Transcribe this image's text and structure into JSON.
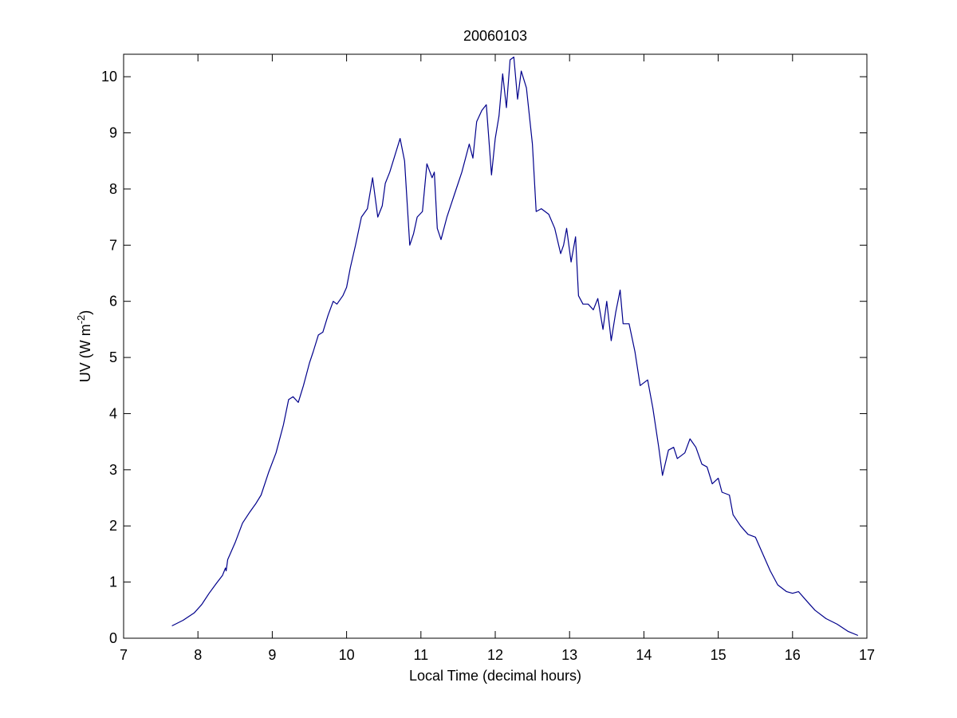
{
  "chart_data": {
    "type": "line",
    "title": "20060103",
    "xlabel": "Local Time (decimal hours)",
    "ylabel": "UV (W m",
    "ylabel_sup": "-2",
    "ylabel_suffix": ")",
    "xlim": [
      7,
      17
    ],
    "ylim": [
      0,
      10.4
    ],
    "xticks": [
      7,
      8,
      9,
      10,
      11,
      12,
      13,
      14,
      15,
      16,
      17
    ],
    "yticks": [
      0,
      1,
      2,
      3,
      4,
      5,
      6,
      7,
      8,
      9,
      10
    ],
    "grid": false,
    "line_color": "#00008b",
    "series": [
      {
        "points": [
          [
            7.65,
            0.22
          ],
          [
            7.8,
            0.32
          ],
          [
            7.95,
            0.45
          ],
          [
            8.05,
            0.6
          ],
          [
            8.15,
            0.8
          ],
          [
            8.25,
            0.98
          ],
          [
            8.33,
            1.12
          ],
          [
            8.37,
            1.25
          ],
          [
            8.38,
            1.2
          ],
          [
            8.4,
            1.4
          ],
          [
            8.5,
            1.7
          ],
          [
            8.6,
            2.05
          ],
          [
            8.7,
            2.25
          ],
          [
            8.78,
            2.4
          ],
          [
            8.85,
            2.55
          ],
          [
            8.95,
            2.95
          ],
          [
            9.05,
            3.3
          ],
          [
            9.15,
            3.8
          ],
          [
            9.22,
            4.25
          ],
          [
            9.28,
            4.3
          ],
          [
            9.35,
            4.2
          ],
          [
            9.42,
            4.5
          ],
          [
            9.5,
            4.9
          ],
          [
            9.55,
            5.1
          ],
          [
            9.62,
            5.4
          ],
          [
            9.68,
            5.45
          ],
          [
            9.75,
            5.75
          ],
          [
            9.82,
            6.0
          ],
          [
            9.87,
            5.95
          ],
          [
            9.95,
            6.1
          ],
          [
            10.0,
            6.25
          ],
          [
            10.05,
            6.6
          ],
          [
            10.12,
            7.0
          ],
          [
            10.2,
            7.5
          ],
          [
            10.28,
            7.65
          ],
          [
            10.35,
            8.2
          ],
          [
            10.42,
            7.5
          ],
          [
            10.48,
            7.7
          ],
          [
            10.52,
            8.1
          ],
          [
            10.58,
            8.3
          ],
          [
            10.65,
            8.6
          ],
          [
            10.72,
            8.9
          ],
          [
            10.78,
            8.5
          ],
          [
            10.85,
            7.0
          ],
          [
            10.9,
            7.2
          ],
          [
            10.95,
            7.5
          ],
          [
            11.02,
            7.6
          ],
          [
            11.08,
            8.45
          ],
          [
            11.15,
            8.2
          ],
          [
            11.18,
            8.3
          ],
          [
            11.22,
            7.3
          ],
          [
            11.27,
            7.1
          ],
          [
            11.35,
            7.5
          ],
          [
            11.45,
            7.9
          ],
          [
            11.55,
            8.3
          ],
          [
            11.65,
            8.8
          ],
          [
            11.7,
            8.55
          ],
          [
            11.75,
            9.2
          ],
          [
            11.82,
            9.4
          ],
          [
            11.88,
            9.5
          ],
          [
            11.95,
            8.25
          ],
          [
            12.0,
            8.9
          ],
          [
            12.05,
            9.3
          ],
          [
            12.1,
            10.05
          ],
          [
            12.15,
            9.45
          ],
          [
            12.2,
            10.3
          ],
          [
            12.25,
            10.35
          ],
          [
            12.3,
            9.6
          ],
          [
            12.35,
            10.1
          ],
          [
            12.42,
            9.8
          ],
          [
            12.5,
            8.8
          ],
          [
            12.55,
            7.6
          ],
          [
            12.62,
            7.65
          ],
          [
            12.72,
            7.55
          ],
          [
            12.8,
            7.3
          ],
          [
            12.88,
            6.85
          ],
          [
            12.92,
            7.0
          ],
          [
            12.96,
            7.3
          ],
          [
            13.02,
            6.7
          ],
          [
            13.08,
            7.15
          ],
          [
            13.12,
            6.1
          ],
          [
            13.18,
            5.95
          ],
          [
            13.25,
            5.95
          ],
          [
            13.32,
            5.85
          ],
          [
            13.38,
            6.05
          ],
          [
            13.45,
            5.5
          ],
          [
            13.5,
            6.0
          ],
          [
            13.56,
            5.3
          ],
          [
            13.62,
            5.8
          ],
          [
            13.68,
            6.2
          ],
          [
            13.72,
            5.6
          ],
          [
            13.8,
            5.6
          ],
          [
            13.88,
            5.1
          ],
          [
            13.95,
            4.5
          ],
          [
            14.05,
            4.6
          ],
          [
            14.12,
            4.1
          ],
          [
            14.2,
            3.4
          ],
          [
            14.25,
            2.9
          ],
          [
            14.33,
            3.35
          ],
          [
            14.4,
            3.4
          ],
          [
            14.45,
            3.2
          ],
          [
            14.55,
            3.3
          ],
          [
            14.62,
            3.55
          ],
          [
            14.7,
            3.4
          ],
          [
            14.78,
            3.1
          ],
          [
            14.85,
            3.05
          ],
          [
            14.92,
            2.75
          ],
          [
            15.0,
            2.85
          ],
          [
            15.05,
            2.6
          ],
          [
            15.15,
            2.55
          ],
          [
            15.2,
            2.2
          ],
          [
            15.3,
            2.0
          ],
          [
            15.4,
            1.85
          ],
          [
            15.5,
            1.8
          ],
          [
            15.6,
            1.5
          ],
          [
            15.7,
            1.2
          ],
          [
            15.8,
            0.95
          ],
          [
            15.92,
            0.83
          ],
          [
            16.0,
            0.8
          ],
          [
            16.08,
            0.83
          ],
          [
            16.2,
            0.65
          ],
          [
            16.3,
            0.5
          ],
          [
            16.45,
            0.35
          ],
          [
            16.6,
            0.25
          ],
          [
            16.75,
            0.12
          ],
          [
            16.88,
            0.05
          ]
        ]
      }
    ]
  }
}
